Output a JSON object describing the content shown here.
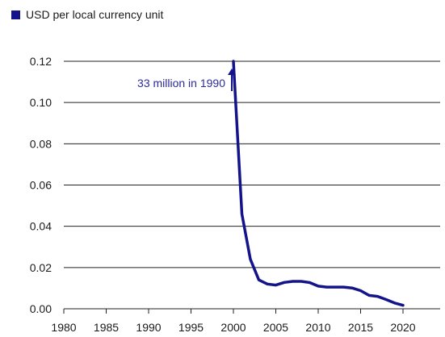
{
  "colors": {
    "series": "#14148a",
    "grid": "#222222",
    "text": "#1a1a1a",
    "annotation": "#2b2b9a"
  },
  "legend": {
    "label": "USD per local currency unit",
    "position": "top-left"
  },
  "chart_data": {
    "type": "line",
    "title": "",
    "xlabel": "",
    "ylabel": "",
    "xlim": [
      1980,
      2022.5
    ],
    "ylim": [
      0,
      0.12
    ],
    "grid": "horizontal",
    "x_ticks": [
      1980,
      1985,
      1990,
      1995,
      2000,
      2005,
      2010,
      2015,
      2020
    ],
    "y_ticks": [
      0,
      0.02,
      0.04,
      0.06,
      0.08,
      0.1,
      0.12
    ],
    "y_tick_labels": [
      "0.00",
      "0.02",
      "0.04",
      "0.06",
      "0.08",
      "0.10",
      "0.12"
    ],
    "series": [
      {
        "name": "USD per local currency unit",
        "x": [
          2000,
          2001,
          2002,
          2003,
          2004,
          2005,
          2006,
          2007,
          2008,
          2009,
          2010,
          2011,
          2012,
          2013,
          2014,
          2015,
          2016,
          2017,
          2018,
          2019,
          2020
        ],
        "values": [
          0.12,
          0.046,
          0.024,
          0.014,
          0.012,
          0.0115,
          0.0128,
          0.0133,
          0.0133,
          0.0127,
          0.011,
          0.0105,
          0.0105,
          0.0105,
          0.0101,
          0.0088,
          0.0065,
          0.006,
          0.0045,
          0.0028,
          0.0017
        ]
      }
    ],
    "annotations": [
      {
        "text": "33 million in 1990",
        "x": 1990,
        "y": 0.12,
        "arrow": "up"
      }
    ]
  }
}
